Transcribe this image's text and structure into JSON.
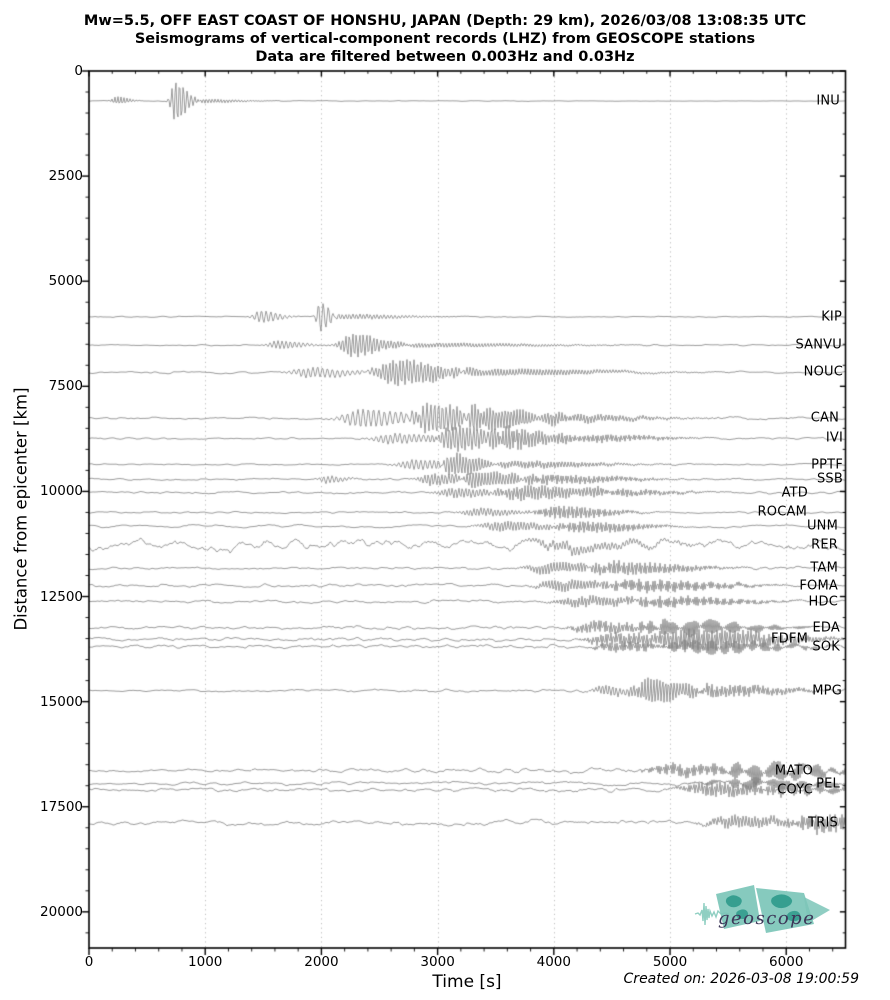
{
  "title": {
    "line1": "Mw=5.5, OFF EAST COAST OF HONSHU, JAPAN (Depth: 29 km), 2026/03/08 13:08:35 UTC",
    "line2": "Seismograms of vertical-component records (LHZ) from GEOSCOPE stations",
    "line3": "Data are filtered between 0.003Hz and 0.03Hz"
  },
  "axes": {
    "xlabel": "Time [s]",
    "ylabel": "Distance from epicenter [km]",
    "xlim": [
      0,
      6510
    ],
    "ylim": [
      0,
      20860
    ],
    "xticks": [
      0,
      1000,
      2000,
      3000,
      4000,
      5000,
      6000
    ],
    "yticks": [
      0,
      2500,
      5000,
      7500,
      10000,
      12500,
      15000,
      17500,
      20000
    ],
    "x_minor_step": 200,
    "y_minor_step": 500,
    "grid": "vertical-dotted"
  },
  "footer": {
    "created_on": "Created on: 2026-03-08 19:00:59"
  },
  "logo": {
    "text": "geoscope"
  },
  "colors": {
    "trace": "#818181",
    "grid": "#b5b5b5",
    "spine": "#000000",
    "logo_light": "#7cc5b8",
    "logo_dark": "#2e9a8b",
    "logo_text": "#3c3658"
  },
  "chart_data": {
    "type": "line",
    "subtype": "seismogram-record-section",
    "x_unit": "seconds",
    "y_unit": "km",
    "stations": [
      {
        "name": "INU",
        "distance_km": 714,
        "label_right": 840,
        "noise_period_s": 70,
        "noise_amp": [
          0.7,
          0.2
        ],
        "bursts": [
          [
            240,
            60,
            26,
            4
          ],
          [
            745,
            55,
            33,
            21
          ],
          [
            1000,
            180,
            25,
            2
          ]
        ]
      },
      {
        "name": "KIP",
        "distance_km": 5845,
        "label_right": 842,
        "noise_period_s": 70,
        "noise_amp": [
          0.8,
          0.8
        ],
        "bursts": [
          [
            1480,
            90,
            40,
            6
          ],
          [
            1990,
            45,
            44,
            15
          ],
          [
            2250,
            280,
            30,
            2.5
          ]
        ]
      },
      {
        "name": "SANVU",
        "distance_km": 6520,
        "label_right": 842,
        "noise_period_s": 75,
        "noise_amp": [
          0.8,
          1.1
        ],
        "bursts": [
          [
            1630,
            120,
            36,
            4
          ],
          [
            2270,
            140,
            30,
            12
          ],
          [
            2950,
            550,
            26,
            2.2
          ]
        ]
      },
      {
        "name": "NOUC",
        "distance_km": 7170,
        "label_right": 843,
        "noise_period_s": 110,
        "noise_amp": [
          1.9,
          1.7
        ],
        "bursts": [
          [
            1900,
            200,
            42,
            5
          ],
          [
            2650,
            220,
            30,
            13
          ],
          [
            3500,
            550,
            26,
            3.5
          ]
        ]
      },
      {
        "name": "CAN",
        "distance_km": 8260,
        "label_right": 839,
        "noise_period_s": 70,
        "noise_amp": [
          1.3,
          2.1
        ],
        "bursts": [
          [
            2350,
            220,
            46,
            9
          ],
          [
            2950,
            180,
            32,
            15
          ],
          [
            3400,
            250,
            26,
            11
          ],
          [
            4050,
            400,
            24,
            4
          ]
        ]
      },
      {
        "name": "IVI",
        "distance_km": 8740,
        "label_right": 843,
        "noise_period_s": 70,
        "noise_amp": [
          1.3,
          1.7
        ],
        "bursts": [
          [
            2600,
            200,
            40,
            5
          ],
          [
            3150,
            180,
            30,
            13
          ],
          [
            3600,
            200,
            24,
            11
          ],
          [
            4250,
            350,
            22,
            4
          ]
        ]
      },
      {
        "name": "PPTF",
        "distance_km": 9360,
        "label_right": 843,
        "noise_period_s": 70,
        "noise_amp": [
          0.9,
          1.3
        ],
        "bursts": [
          [
            2800,
            180,
            38,
            5
          ],
          [
            3150,
            130,
            27,
            11
          ],
          [
            3750,
            380,
            24,
            3.5
          ]
        ]
      },
      {
        "name": "SSB",
        "distance_km": 9710,
        "label_right": 843,
        "noise_period_s": 70,
        "noise_amp": [
          1.3,
          1.7
        ],
        "bursts": [
          [
            2050,
            90,
            36,
            3.5
          ],
          [
            2950,
            140,
            30,
            6
          ],
          [
            3350,
            200,
            26,
            8
          ],
          [
            3950,
            380,
            22,
            4.5
          ]
        ]
      },
      {
        "name": "ATD",
        "distance_km": 10030,
        "label_right": 808,
        "noise_period_s": 75,
        "noise_amp": [
          1.7,
          1.7
        ],
        "bursts": [
          [
            3150,
            180,
            30,
            5
          ],
          [
            3750,
            280,
            24,
            7.5
          ],
          [
            4450,
            320,
            22,
            3.5
          ]
        ]
      },
      {
        "name": "ROCAM",
        "distance_km": 10500,
        "label_right": 807,
        "noise_period_s": 70,
        "noise_amp": [
          1.2,
          1.4
        ],
        "bursts": [
          [
            3350,
            180,
            30,
            4
          ],
          [
            4050,
            240,
            22,
            6.5
          ]
        ]
      },
      {
        "name": "UNM",
        "distance_km": 10830,
        "label_right": 838,
        "noise_period_s": 140,
        "noise_amp": [
          2.5,
          2.1
        ],
        "bursts": [
          [
            3550,
            220,
            28,
            5
          ],
          [
            4250,
            280,
            22,
            5.5
          ]
        ]
      },
      {
        "name": "RER",
        "distance_km": 11280,
        "label_right": 838,
        "noise_period_s": 110,
        "noise_amp": [
          8.3,
          8.3
        ],
        "bursts": [
          [
            4100,
            420,
            30,
            4
          ]
        ]
      },
      {
        "name": "TAM",
        "distance_km": 11830,
        "label_right": 838,
        "noise_period_s": 70,
        "noise_amp": [
          1.7,
          2.5
        ],
        "bursts": [
          [
            3950,
            220,
            26,
            5.5
          ],
          [
            4550,
            330,
            22,
            6.5
          ]
        ]
      },
      {
        "name": "FOMA",
        "distance_km": 12240,
        "label_right": 838,
        "noise_period_s": 80,
        "noise_amp": [
          2.1,
          2.7
        ],
        "bursts": [
          [
            4050,
            230,
            25,
            5.5
          ],
          [
            4750,
            380,
            20,
            6
          ]
        ]
      },
      {
        "name": "HDC",
        "distance_km": 12620,
        "label_right": 838,
        "noise_period_s": 85,
        "noise_amp": [
          2.3,
          2.7
        ],
        "bursts": [
          [
            4250,
            280,
            24,
            5
          ],
          [
            4950,
            380,
            20,
            5
          ]
        ]
      },
      {
        "name": "EDA",
        "distance_km": 13240,
        "label_right": 840,
        "noise_period_s": 70,
        "noise_amp": [
          2.1,
          2.9
        ],
        "bursts": [
          [
            4350,
            230,
            22,
            6
          ],
          [
            5050,
            380,
            18,
            8
          ]
        ]
      },
      {
        "name": "FDFM",
        "distance_km": 13520,
        "label_right": 808,
        "noise_period_s": 70,
        "noise_amp": [
          2.3,
          3.1
        ],
        "bursts": [
          [
            4450,
            200,
            22,
            6
          ],
          [
            5150,
            430,
            14,
            11
          ]
        ]
      },
      {
        "name": "SOK",
        "distance_km": 13690,
        "label_right": 840,
        "noise_period_s": 70,
        "noise_amp": [
          2.3,
          2.9
        ],
        "bursts": [
          [
            4550,
            230,
            20,
            5
          ],
          [
            5250,
            390,
            16,
            7
          ]
        ]
      },
      {
        "name": "MPG",
        "distance_km": 14740,
        "label_right": 842,
        "noise_period_s": 70,
        "noise_amp": [
          1.0,
          3.0
        ],
        "bursts": [
          [
            4450,
            130,
            30,
            5
          ],
          [
            4830,
            170,
            25,
            13
          ],
          [
            5400,
            330,
            22,
            6
          ]
        ]
      },
      {
        "name": "MATO",
        "distance_km": 16640,
        "label_right": 813,
        "noise_period_s": 80,
        "noise_amp": [
          1.7,
          5.5
        ],
        "bursts": [
          [
            5050,
            280,
            20,
            6
          ],
          [
            5780,
            400,
            18,
            9
          ]
        ]
      },
      {
        "name": "PEL",
        "distance_km": 16950,
        "label_right": 840,
        "noise_period_s": 90,
        "noise_amp": [
          1.7,
          4.0
        ],
        "bursts": [
          [
            5650,
            420,
            18,
            5
          ]
        ]
      },
      {
        "name": "COYC",
        "distance_km": 17100,
        "label_right": 813,
        "noise_period_s": 70,
        "noise_amp": [
          2.1,
          3.7
        ],
        "bursts": [
          [
            5350,
            280,
            14,
            7
          ],
          [
            5950,
            320,
            16,
            5
          ]
        ]
      },
      {
        "name": "TRIS",
        "distance_km": 17880,
        "label_right": 838,
        "noise_period_s": 100,
        "noise_amp": [
          3.4,
          5.0
        ],
        "bursts": [
          [
            5550,
            280,
            24,
            6
          ],
          [
            6280,
            260,
            20,
            9
          ]
        ]
      }
    ]
  }
}
